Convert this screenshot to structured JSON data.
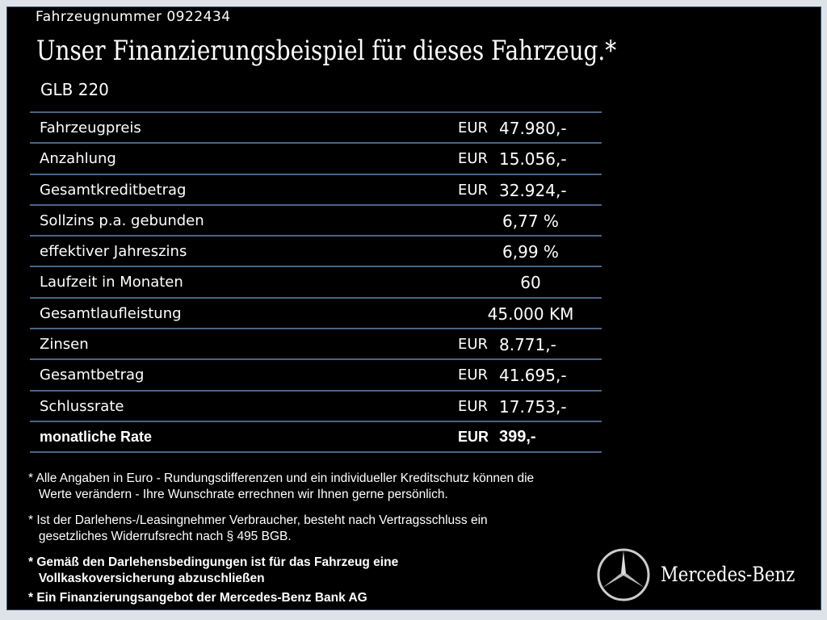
{
  "header": {
    "vehicle_number": "Fahrzeugnummer  0922434",
    "title": "Unser Finanzierungsbeispiel für dieses Fahrzeug.*",
    "model": "GLB 220"
  },
  "rows": [
    {
      "label": "Fahrzeugpreis",
      "currency": "EUR",
      "value": "47.980,-"
    },
    {
      "label": "Anzahlung",
      "currency": "EUR",
      "value": "15.056,-"
    },
    {
      "label": "Gesamtkreditbetrag",
      "currency": "EUR",
      "value": "32.924,-"
    },
    {
      "label": "Sollzins p.a. gebunden",
      "currency": "",
      "value": "6,77 %"
    },
    {
      "label": "effektiver Jahreszins",
      "currency": "",
      "value": "6,99 %"
    },
    {
      "label": "Laufzeit in Monaten",
      "currency": "",
      "value": "60"
    },
    {
      "label": "Gesamtlaufleistung",
      "currency": "",
      "value": "45.000 KM"
    },
    {
      "label": "Zinsen",
      "currency": "EUR",
      "value": "8.771,-"
    },
    {
      "label": "Gesamtbetrag",
      "currency": "EUR",
      "value": "41.695,-"
    },
    {
      "label": "Schlussrate",
      "currency": "EUR",
      "value": "17.753,-"
    },
    {
      "label": "monatliche Rate",
      "currency": "EUR",
      "value": "399,-"
    }
  ],
  "notes": [
    "* Alle Angaben in Euro - Rundungsdifferenzen und ein individueller Kreditschutz können die\n   Werte verändern - Ihre Wunschrate errechnen wir Ihnen gerne persönlich.",
    "* Ist der Darlehens-/Leasingnehmer Verbraucher, besteht nach Vertragsschluss ein\n   gesetzliches Widerrufsrecht nach § 495 BGB.",
    "* Gemäß den Darlehensbedingungen ist für das Fahrzeug eine\n   Vollkaskoversicherung abzuschließen",
    "* Ein Finanzierungsangebot der Mercedes-Benz Bank AG"
  ],
  "brand": {
    "name": "Mercedes-Benz",
    "logo_icon": "three-pointed-star-icon"
  }
}
